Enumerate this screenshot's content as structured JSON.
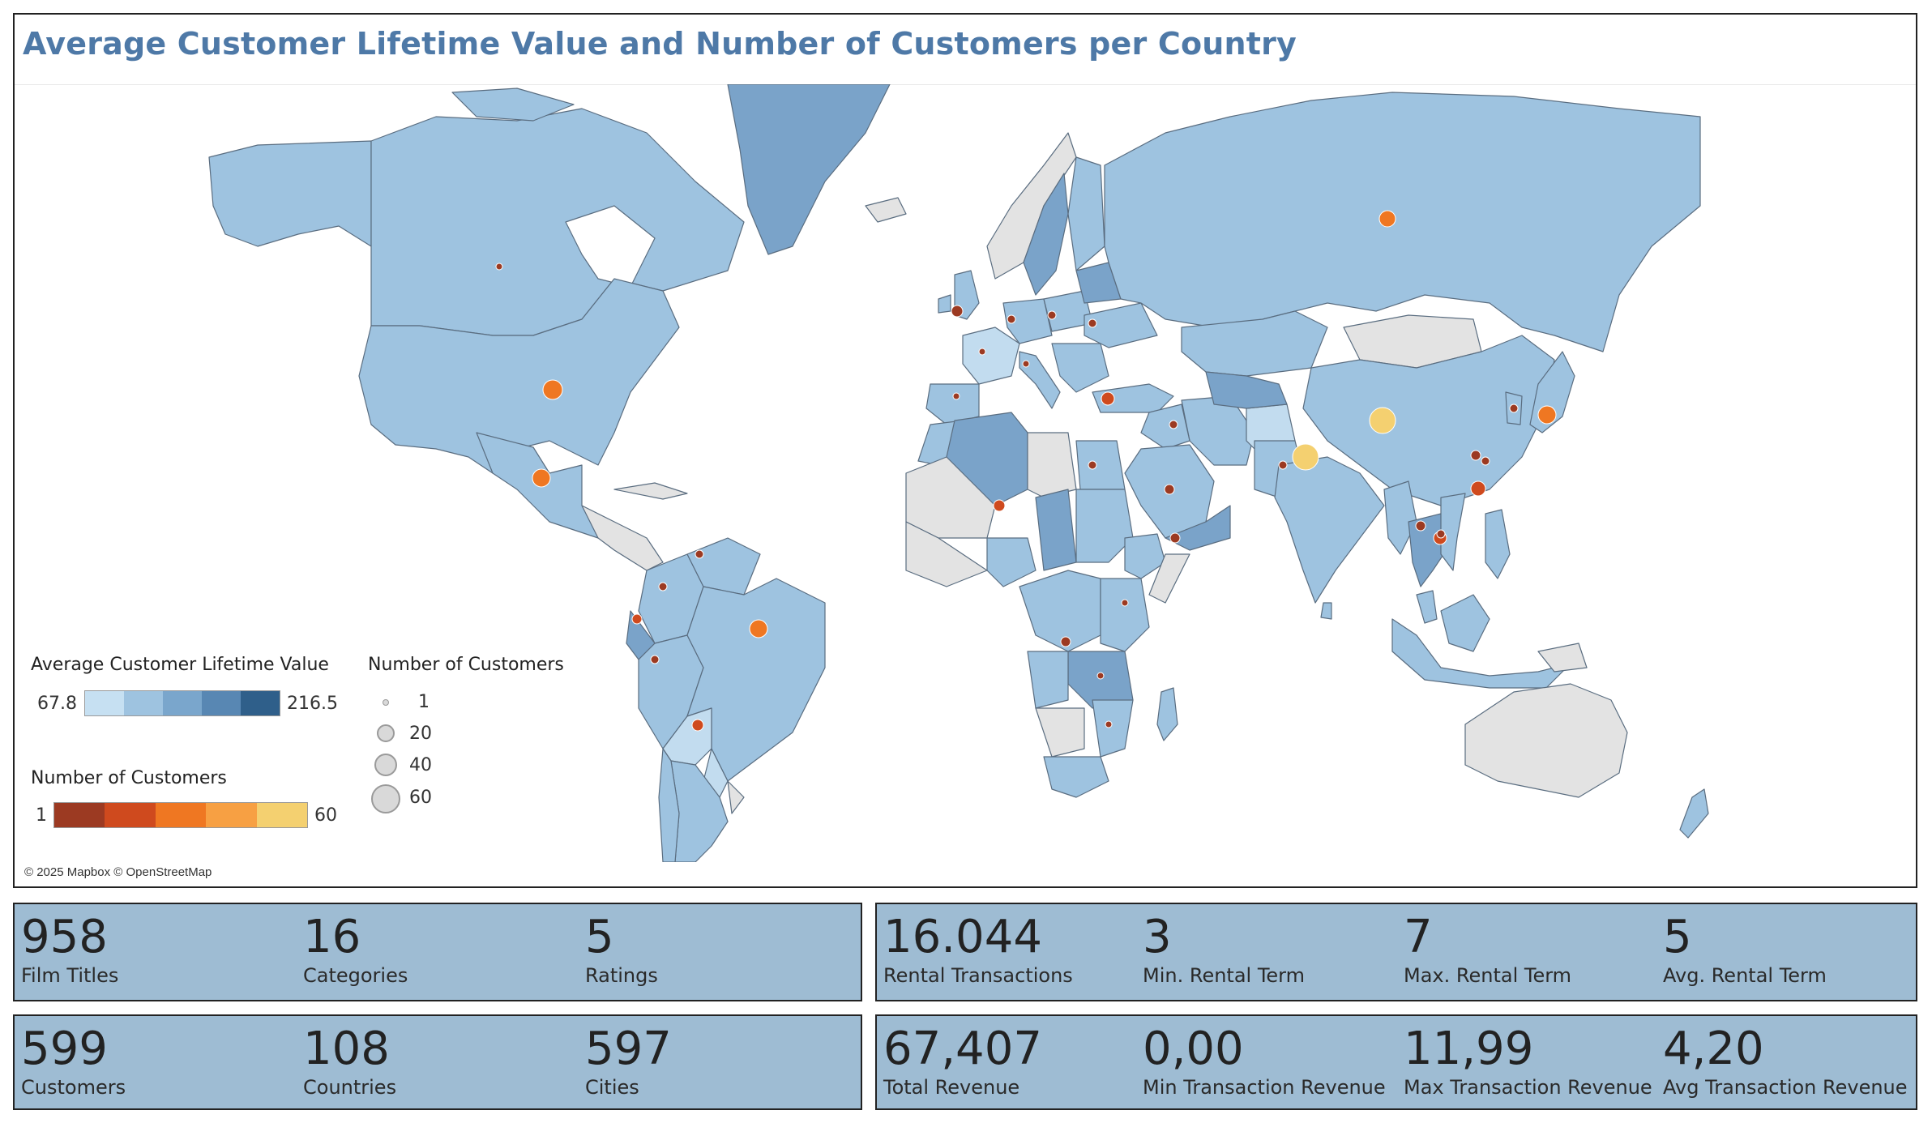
{
  "dashboard": {
    "title": "Average Customer Lifetime Value and Number of Customers per Country",
    "copyright": "© 2025 Mapbox © OpenStreetMap"
  },
  "legend": {
    "clv": {
      "title": "Average Customer Lifetime Value",
      "min": "67.8",
      "max": "216.5",
      "colors": [
        "#c6e0f2",
        "#9ec3e0",
        "#7aa6cc",
        "#5887b3",
        "#2f5f8a"
      ]
    },
    "size": {
      "title": "Number of Customers",
      "values": [
        "1",
        "20",
        "40",
        "60"
      ]
    },
    "color": {
      "title": "Number of Customers",
      "min": "1",
      "max": "60",
      "colors": [
        "#9c3a22",
        "#cf4a1e",
        "#ef7722",
        "#f7a043",
        "#f4d070"
      ]
    }
  },
  "map": {
    "land_color": "#9ec3e0",
    "land_dark_color": "#7aa3c9",
    "land_light_color": "#c2dcef",
    "no_data_color": "#e3e3e3",
    "border_color": "#5a6d80",
    "markers": [
      {
        "country": "United States",
        "customers": 36,
        "color": "#ef7722"
      },
      {
        "country": "Mexico",
        "customers": 30,
        "color": "#ef7722"
      },
      {
        "country": "Brazil",
        "customers": 28,
        "color": "#ef7722"
      },
      {
        "country": "Argentina",
        "customers": 13,
        "color": "#cf4a1e"
      },
      {
        "country": "Russia",
        "customers": 28,
        "color": "#ef7722"
      },
      {
        "country": "Japan",
        "customers": 31,
        "color": "#ef7722"
      },
      {
        "country": "China",
        "customers": 53,
        "color": "#f4d070"
      },
      {
        "country": "India",
        "customers": 60,
        "color": "#f4d070"
      },
      {
        "country": "Philippines",
        "customers": 20,
        "color": "#cf4a1e"
      },
      {
        "country": "Indonesia",
        "customers": 14,
        "color": "#cf4a1e"
      },
      {
        "country": "Turkey",
        "customers": 15,
        "color": "#cf4a1e"
      },
      {
        "country": "Nigeria",
        "customers": 13,
        "color": "#cf4a1e"
      },
      {
        "country": "South Africa",
        "customers": 11,
        "color": "#cf4a1e"
      },
      {
        "country": "Canada",
        "customers": 5,
        "color": "#9c3a22"
      },
      {
        "country": "United Kingdom",
        "customers": 9,
        "color": "#9c3a22"
      },
      {
        "country": "Iran",
        "customers": 8,
        "color": "#9c3a22"
      },
      {
        "country": "Colombia",
        "customers": 6,
        "color": "#9c3a22"
      },
      {
        "country": "Venezuela",
        "customers": 7,
        "color": "#9c3a22"
      }
    ]
  },
  "kpis": {
    "row1_left": [
      {
        "value": "958",
        "label": "Film Titles"
      },
      {
        "value": "16",
        "label": "Categories"
      },
      {
        "value": "5",
        "label": "Ratings"
      }
    ],
    "row1_right": [
      {
        "value": "16.044",
        "label": "Rental Transactions"
      },
      {
        "value": "3",
        "label": "Min. Rental Term"
      },
      {
        "value": "7",
        "label": "Max. Rental Term"
      },
      {
        "value": "5",
        "label": "Avg. Rental Term"
      }
    ],
    "row2_left": [
      {
        "value": "599",
        "label": "Customers"
      },
      {
        "value": "108",
        "label": "Countries"
      },
      {
        "value": "597",
        "label": "Cities"
      }
    ],
    "row2_right": [
      {
        "value": "67,407",
        "label": "Total Revenue"
      },
      {
        "value": "0,00",
        "label": "Min Transaction Revenue"
      },
      {
        "value": "11,99",
        "label": "Max Transaction Revenue"
      },
      {
        "value": "4,20",
        "label": "Avg Transaction Revenue"
      }
    ]
  }
}
